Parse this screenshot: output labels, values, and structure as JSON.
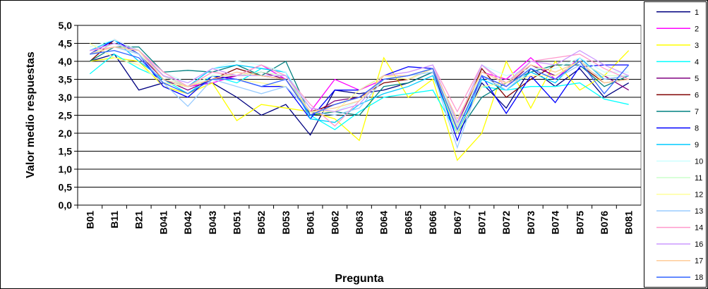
{
  "chart_data": {
    "type": "line",
    "x_label": "Pregunta",
    "y_label": "Valor medio respuestas",
    "categories": [
      "B01",
      "B11",
      "B21",
      "B041",
      "B042",
      "B043",
      "B051",
      "B052",
      "B053",
      "B061",
      "B062",
      "B063",
      "B064",
      "B065",
      "B066",
      "B067",
      "B071",
      "B072",
      "B073",
      "B074",
      "B075",
      "B076",
      "B081"
    ],
    "ylim": [
      0,
      5
    ],
    "yticks": [
      {
        "value": 0,
        "label": "0,0"
      },
      {
        "value": 0.5,
        "label": "0,5"
      },
      {
        "value": 1,
        "label": "1,0"
      },
      {
        "value": 1.5,
        "label": "1,5"
      },
      {
        "value": 2,
        "label": "2,0"
      },
      {
        "value": 2.5,
        "label": "2,5"
      },
      {
        "value": 3,
        "label": "3,0"
      },
      {
        "value": 3.5,
        "label": "3,5"
      },
      {
        "value": 4,
        "label": "4,0"
      },
      {
        "value": 4.5,
        "label": "4,5"
      },
      {
        "value": 5,
        "label": "5,0"
      }
    ],
    "grid": true,
    "legend": "right",
    "series": [
      {
        "name": "1",
        "color": "#000080",
        "values": [
          4.0,
          4.2,
          3.2,
          3.4,
          3.3,
          3.4,
          3.0,
          2.5,
          2.8,
          1.95,
          3.2,
          3.1,
          3.2,
          3.4,
          3.7,
          2.0,
          3.4,
          2.7,
          3.8,
          3.3,
          3.8,
          3.0,
          3.4
        ]
      },
      {
        "name": "2",
        "color": "#FF00FF",
        "values": [
          4.3,
          4.5,
          4.2,
          3.6,
          3.3,
          3.4,
          3.6,
          3.9,
          3.5,
          2.6,
          3.5,
          3.2,
          3.5,
          3.6,
          3.8,
          2.3,
          3.7,
          3.5,
          4.1,
          3.5,
          4.1,
          3.5,
          3.6
        ]
      },
      {
        "name": "3",
        "color": "#FFFF00",
        "values": [
          4.0,
          4.1,
          4.0,
          3.3,
          3.1,
          3.4,
          2.35,
          2.8,
          2.7,
          2.6,
          2.4,
          1.8,
          4.1,
          3.0,
          3.5,
          1.25,
          2.0,
          4.0,
          2.7,
          4.0,
          3.2,
          3.6,
          4.3
        ]
      },
      {
        "name": "4",
        "color": "#00FFFF",
        "values": [
          3.65,
          4.2,
          3.8,
          3.5,
          3.1,
          3.6,
          3.4,
          3.8,
          3.7,
          2.5,
          2.1,
          2.6,
          3.0,
          3.1,
          3.2,
          2.0,
          3.3,
          3.2,
          3.3,
          3.3,
          3.4,
          2.95,
          2.8
        ]
      },
      {
        "name": "5",
        "color": "#800080",
        "values": [
          4.2,
          4.6,
          4.2,
          3.5,
          3.2,
          3.5,
          3.6,
          3.7,
          3.5,
          2.5,
          2.9,
          3.0,
          3.5,
          3.6,
          3.8,
          2.1,
          3.6,
          3.3,
          3.9,
          3.6,
          4.0,
          3.6,
          3.2
        ]
      },
      {
        "name": "6",
        "color": "#800000",
        "values": [
          4.0,
          4.6,
          4.3,
          3.6,
          3.3,
          3.5,
          3.8,
          3.6,
          3.5,
          2.6,
          2.8,
          3.0,
          3.4,
          3.5,
          3.8,
          2.2,
          3.8,
          3.0,
          3.5,
          3.9,
          3.9,
          3.4,
          3.5
        ]
      },
      {
        "name": "7",
        "color": "#008080",
        "values": [
          4.0,
          4.4,
          4.4,
          3.7,
          3.75,
          3.7,
          3.9,
          3.6,
          4.0,
          2.5,
          2.6,
          2.5,
          3.3,
          3.4,
          3.7,
          2.0,
          3.0,
          3.4,
          3.7,
          3.9,
          3.9,
          3.3,
          3.6
        ]
      },
      {
        "name": "8",
        "color": "#0000FF",
        "values": [
          4.2,
          4.6,
          4.2,
          3.3,
          3.0,
          3.6,
          3.5,
          3.3,
          3.3,
          2.4,
          3.2,
          3.2,
          3.6,
          3.85,
          3.8,
          1.8,
          3.6,
          2.55,
          3.6,
          2.85,
          3.85,
          3.9,
          3.9
        ]
      },
      {
        "name": "9",
        "color": "#00CCFF",
        "values": [
          4.3,
          4.6,
          4.0,
          3.5,
          3.3,
          3.8,
          3.9,
          3.8,
          3.7,
          2.4,
          2.3,
          2.8,
          3.1,
          3.3,
          3.6,
          2.0,
          3.5,
          3.2,
          3.7,
          3.4,
          4.1,
          3.5,
          3.6
        ]
      },
      {
        "name": "10",
        "color": "#CCFFFF",
        "values": [
          4.4,
          4.6,
          4.3,
          3.7,
          3.4,
          3.8,
          4.0,
          3.9,
          3.7,
          2.7,
          2.6,
          2.9,
          3.5,
          3.6,
          3.8,
          2.3,
          3.9,
          3.6,
          3.8,
          3.8,
          4.1,
          3.7,
          3.7
        ]
      },
      {
        "name": "11",
        "color": "#CCFFCC",
        "values": [
          4.2,
          4.5,
          4.2,
          3.6,
          3.3,
          3.6,
          3.6,
          3.7,
          3.6,
          2.6,
          2.7,
          2.9,
          3.5,
          3.6,
          3.8,
          2.2,
          3.7,
          3.4,
          3.9,
          3.7,
          4.0,
          3.6,
          3.6
        ]
      },
      {
        "name": "12",
        "color": "#FFFF99",
        "values": [
          4.5,
          4.1,
          3.9,
          3.4,
          3.3,
          3.5,
          3.5,
          3.4,
          3.3,
          2.6,
          2.6,
          3.2,
          3.6,
          3.5,
          3.8,
          2.0,
          3.3,
          3.4,
          3.6,
          3.6,
          4.0,
          3.4,
          3.5
        ]
      },
      {
        "name": "13",
        "color": "#99CCFF",
        "values": [
          4.2,
          4.4,
          4.2,
          3.4,
          2.75,
          3.5,
          3.3,
          3.1,
          3.3,
          2.6,
          2.5,
          2.7,
          3.5,
          3.6,
          3.7,
          1.6,
          3.6,
          3.2,
          3.8,
          3.5,
          3.9,
          3.5,
          3.6
        ]
      },
      {
        "name": "14",
        "color": "#FF99CC",
        "values": [
          4.3,
          4.4,
          4.3,
          3.7,
          3.3,
          3.7,
          3.6,
          3.9,
          3.6,
          2.8,
          2.2,
          2.9,
          3.6,
          3.7,
          3.9,
          2.6,
          3.9,
          3.3,
          4.0,
          4.1,
          4.2,
          3.8,
          3.5
        ]
      },
      {
        "name": "16",
        "color": "#CC99FF",
        "values": [
          4.3,
          4.5,
          4.3,
          3.6,
          3.4,
          3.8,
          3.6,
          3.6,
          3.6,
          2.7,
          2.6,
          2.8,
          3.6,
          3.7,
          3.9,
          2.3,
          3.9,
          3.4,
          4.0,
          3.9,
          4.3,
          3.9,
          3.6
        ]
      },
      {
        "name": "17",
        "color": "#FFCC99",
        "values": [
          4.2,
          4.4,
          4.3,
          3.5,
          3.3,
          3.5,
          3.7,
          3.6,
          3.5,
          2.6,
          2.7,
          2.9,
          3.6,
          3.6,
          3.8,
          2.4,
          3.7,
          3.4,
          3.9,
          3.7,
          4.0,
          3.4,
          3.5
        ]
      },
      {
        "name": "18",
        "color": "#3366FF",
        "values": [
          4.2,
          4.3,
          4.1,
          3.4,
          3.1,
          3.5,
          3.5,
          3.3,
          3.5,
          2.5,
          2.8,
          3.0,
          3.5,
          3.6,
          3.8,
          2.1,
          3.6,
          3.3,
          3.8,
          3.5,
          4.0,
          3.1,
          3.9
        ]
      }
    ]
  }
}
